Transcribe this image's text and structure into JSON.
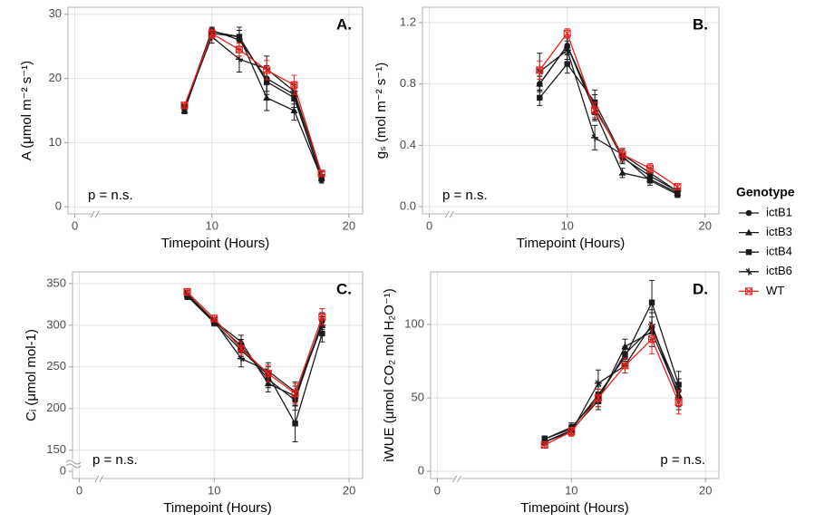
{
  "chart_data": [
    {
      "type": "line",
      "title": "A.",
      "ylabel": "A (μmol m⁻² s⁻¹)",
      "xlabel": "Timepoint (Hours)",
      "annotation": "p = n.s.",
      "annotation_corner": "bottom left",
      "legend_title": "Genotype",
      "axis_break": "x",
      "xlim": [
        -0.5,
        21
      ],
      "xticks": [
        0,
        10,
        20
      ],
      "ylim": [
        -1.1,
        31.1
      ],
      "yticks": [
        0,
        10,
        20,
        30
      ],
      "grid": true,
      "x": [
        8,
        10,
        12,
        14,
        16,
        18
      ],
      "series": [
        {
          "name": "ictB1",
          "color": "#1a1a1a",
          "marker": "circle",
          "values": [
            15.5,
            27.5,
            26,
            20,
            17.5,
            4.2
          ],
          "errors": [
            0.5,
            0.5,
            1.5,
            2,
            1.5,
            0.5
          ]
        },
        {
          "name": "ictB3",
          "color": "#1a1a1a",
          "marker": "triangle",
          "values": [
            15,
            27,
            26.5,
            17,
            15,
            4.5
          ],
          "errors": [
            0.5,
            0.7,
            1,
            2,
            1.5,
            0.5
          ]
        },
        {
          "name": "ictB4",
          "color": "#1a1a1a",
          "marker": "square",
          "values": [
            15.5,
            27.3,
            26.5,
            19.5,
            17,
            4.5
          ],
          "errors": [
            0.5,
            0.5,
            1.5,
            2,
            1.5,
            0.5
          ]
        },
        {
          "name": "ictB6",
          "color": "#1a1a1a",
          "marker": "plus",
          "values": [
            15.5,
            26.5,
            23,
            21.5,
            18,
            5
          ],
          "errors": [
            0.5,
            1,
            2,
            2,
            1.5,
            0.5
          ]
        },
        {
          "name": "WT",
          "color": "#e8211d",
          "marker": "square-x",
          "values": [
            15.8,
            27,
            24.5,
            21.3,
            19,
            5.2
          ],
          "errors": [
            0.5,
            0.7,
            1,
            1.5,
            1.5,
            0.5
          ]
        }
      ]
    },
    {
      "type": "line",
      "title": "B.",
      "ylabel": "gₛ (mol m⁻² s⁻¹)",
      "xlabel": "Timepoint (Hours)",
      "annotation": "p = n.s.",
      "annotation_corner": "bottom left",
      "axis_break": "x",
      "xlim": [
        -0.5,
        21
      ],
      "xticks": [
        0,
        10,
        20
      ],
      "ylim": [
        -0.047,
        1.3
      ],
      "yticks": [
        {
          "value": 0,
          "label": "0.0"
        },
        0.4,
        0.8,
        1.2
      ],
      "grid": true,
      "x": [
        8,
        10,
        12,
        14,
        16,
        18
      ],
      "series": [
        {
          "name": "ictB1",
          "color": "#1a1a1a",
          "marker": "circle",
          "values": [
            0.8,
            1.05,
            0.65,
            0.32,
            0.2,
            0.1
          ],
          "errors": [
            0.05,
            0.05,
            0.08,
            0.04,
            0.03,
            0.02
          ]
        },
        {
          "name": "ictB3",
          "color": "#1a1a1a",
          "marker": "triangle",
          "values": [
            0.8,
            1.05,
            0.62,
            0.22,
            0.18,
            0.09
          ],
          "errors": [
            0.05,
            0.05,
            0.06,
            0.03,
            0.02,
            0.02
          ]
        },
        {
          "name": "ictB4",
          "color": "#1a1a1a",
          "marker": "square",
          "values": [
            0.71,
            0.93,
            0.68,
            0.33,
            0.17,
            0.08
          ],
          "errors": [
            0.05,
            0.06,
            0.08,
            0.04,
            0.03,
            0.02
          ]
        },
        {
          "name": "ictB6",
          "color": "#1a1a1a",
          "marker": "plus",
          "values": [
            0.88,
            1.02,
            0.45,
            0.34,
            0.22,
            0.1
          ],
          "errors": [
            0.12,
            0.06,
            0.08,
            0.04,
            0.03,
            0.02
          ]
        },
        {
          "name": "WT",
          "color": "#e8211d",
          "marker": "square-x",
          "values": [
            0.89,
            1.13,
            0.63,
            0.34,
            0.25,
            0.13
          ],
          "errors": [
            0.06,
            0.03,
            0.05,
            0.04,
            0.03,
            0.02
          ]
        }
      ]
    },
    {
      "type": "line",
      "title": "C.",
      "ylabel": "Cᵢ (μmol mol-1)",
      "xlabel": "Timepoint (Hours)",
      "annotation": "p = n.s.",
      "annotation_corner": "bottom left",
      "axis_break": "xy",
      "xlim": [
        -0.5,
        21
      ],
      "xticks": [
        0,
        10,
        20
      ],
      "ylim": [
        116,
        364
      ],
      "yticks": [
        0,
        150,
        200,
        250,
        300,
        350
      ],
      "grid": true,
      "x": [
        8,
        10,
        12,
        14,
        16,
        18
      ],
      "series": [
        {
          "name": "ictB1",
          "color": "#1a1a1a",
          "marker": "circle",
          "values": [
            335,
            305,
            275,
            235,
            210,
            305
          ],
          "errors": [
            4,
            4,
            8,
            10,
            12,
            10
          ]
        },
        {
          "name": "ictB3",
          "color": "#1a1a1a",
          "marker": "triangle",
          "values": [
            337,
            305,
            280,
            230,
            215,
            300
          ],
          "errors": [
            4,
            4,
            8,
            10,
            12,
            10
          ]
        },
        {
          "name": "ictB4",
          "color": "#1a1a1a",
          "marker": "square",
          "values": [
            335,
            303,
            270,
            240,
            182,
            290
          ],
          "errors": [
            4,
            4,
            8,
            10,
            22,
            10
          ]
        },
        {
          "name": "ictB6",
          "color": "#1a1a1a",
          "marker": "plus",
          "values": [
            338,
            305,
            260,
            245,
            220,
            300
          ],
          "errors": [
            4,
            4,
            10,
            10,
            12,
            10
          ]
        },
        {
          "name": "WT",
          "color": "#e8211d",
          "marker": "square-x",
          "values": [
            340,
            308,
            272,
            242,
            218,
            310
          ],
          "errors": [
            4,
            4,
            8,
            10,
            12,
            10
          ]
        }
      ]
    },
    {
      "type": "line",
      "title": "D.",
      "ylabel": "iWUE (μmol CO₂ mol H₂O⁻¹)",
      "xlabel": "Timepoint (Hours)",
      "annotation": "p = n.s.",
      "annotation_corner": "bottom right",
      "axis_break": "x",
      "xlim": [
        -0.5,
        21
      ],
      "xticks": [
        0,
        10,
        20
      ],
      "ylim": [
        -4.9,
        135.8
      ],
      "yticks": [
        0,
        50,
        100
      ],
      "grid": true,
      "x": [
        8,
        10,
        12,
        14,
        16,
        18
      ],
      "series": [
        {
          "name": "ictB1",
          "color": "#1a1a1a",
          "marker": "circle",
          "values": [
            22,
            30,
            50,
            80,
            98,
            55
          ],
          "errors": [
            2,
            3,
            6,
            5,
            10,
            8
          ]
        },
        {
          "name": "ictB3",
          "color": "#1a1a1a",
          "marker": "triangle",
          "values": [
            20,
            28,
            48,
            85,
            95,
            52
          ],
          "errors": [
            2,
            3,
            6,
            5,
            10,
            8
          ]
        },
        {
          "name": "ictB4",
          "color": "#1a1a1a",
          "marker": "square",
          "values": [
            22,
            29,
            52,
            78,
            115,
            59
          ],
          "errors": [
            2,
            3,
            6,
            5,
            15,
            9
          ]
        },
        {
          "name": "ictB6",
          "color": "#1a1a1a",
          "marker": "plus",
          "values": [
            20,
            27,
            60,
            72,
            100,
            50
          ],
          "errors": [
            2,
            3,
            9,
            5,
            10,
            8
          ]
        },
        {
          "name": "WT",
          "color": "#e8211d",
          "marker": "square-x",
          "values": [
            18,
            27,
            50,
            72,
            90,
            47
          ],
          "errors": [
            2,
            3,
            6,
            5,
            10,
            8
          ]
        }
      ]
    }
  ]
}
